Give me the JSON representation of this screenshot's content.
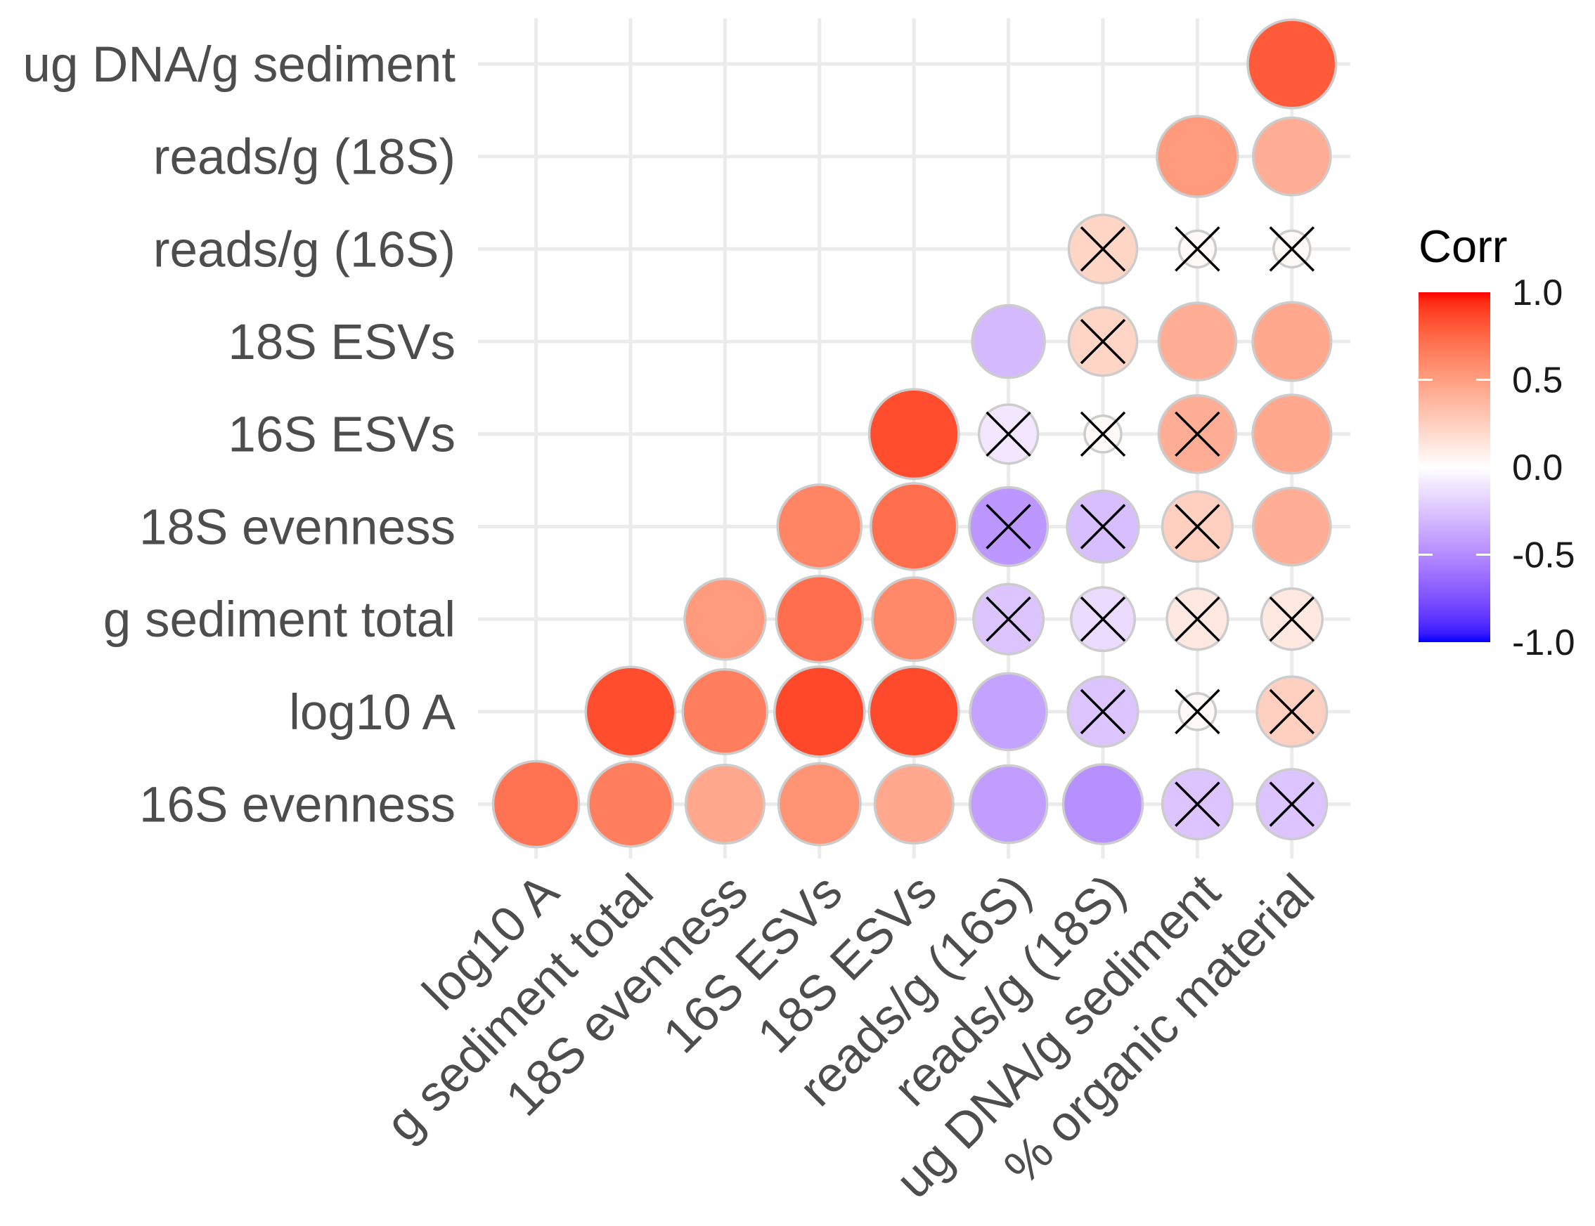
{
  "chart_data": {
    "type": "heatmap",
    "x_categories": [
      "log10 A",
      "g sediment total",
      "18S evenness",
      "16S ESVs",
      "18S ESVs",
      "reads/g (16S)",
      "reads/g (18S)",
      "ug DNA/g sediment",
      "% organic material"
    ],
    "y_categories": [
      "16S evenness",
      "log10 A",
      "g sediment total",
      "18S evenness",
      "16S ESVs",
      "18S ESVs",
      "reads/g (16S)",
      "reads/g (18S)",
      "ug DNA/g sediment"
    ],
    "matrix": [
      {
        "row": "16S evenness",
        "values": [
          0.7,
          0.65,
          0.45,
          0.55,
          0.45,
          -0.42,
          -0.48,
          -0.25,
          -0.25
        ],
        "insignificant": [
          false,
          false,
          false,
          false,
          false,
          false,
          false,
          true,
          true
        ]
      },
      {
        "row": "log10 A",
        "values": [
          null,
          0.85,
          0.65,
          0.87,
          0.86,
          -0.4,
          -0.25,
          0.03,
          0.25
        ],
        "insignificant": [
          false,
          false,
          false,
          false,
          false,
          false,
          true,
          true,
          true
        ]
      },
      {
        "row": "g sediment total",
        "values": [
          null,
          null,
          0.52,
          0.72,
          0.6,
          -0.25,
          -0.15,
          0.12,
          0.12
        ],
        "insignificant": [
          false,
          false,
          false,
          false,
          false,
          true,
          true,
          true,
          true
        ]
      },
      {
        "row": "18S evenness",
        "values": [
          null,
          null,
          null,
          0.62,
          0.72,
          -0.45,
          -0.28,
          0.25,
          0.42
        ],
        "insignificant": [
          false,
          false,
          false,
          false,
          false,
          true,
          true,
          true,
          false
        ]
      },
      {
        "row": "16S ESVs",
        "values": [
          null,
          null,
          null,
          null,
          0.85,
          -0.1,
          0.03,
          0.42,
          0.45
        ],
        "insignificant": [
          false,
          false,
          false,
          false,
          false,
          true,
          true,
          true,
          false
        ]
      },
      {
        "row": "18S ESVs",
        "values": [
          null,
          null,
          null,
          null,
          null,
          -0.3,
          0.22,
          0.42,
          0.45
        ],
        "insignificant": [
          false,
          false,
          false,
          false,
          false,
          false,
          true,
          false,
          false
        ]
      },
      {
        "row": "reads/g (16S)",
        "values": [
          null,
          null,
          null,
          null,
          null,
          null,
          0.22,
          0.03,
          0.03
        ],
        "insignificant": [
          false,
          false,
          false,
          false,
          false,
          false,
          true,
          true,
          true
        ]
      },
      {
        "row": "reads/g (18S)",
        "values": [
          null,
          null,
          null,
          null,
          null,
          null,
          null,
          0.52,
          0.42
        ],
        "insignificant": [
          false,
          false,
          false,
          false,
          false,
          false,
          false,
          false,
          false
        ]
      },
      {
        "row": "ug DNA/g sediment",
        "values": [
          null,
          null,
          null,
          null,
          null,
          null,
          null,
          null,
          0.8
        ],
        "insignificant": [
          false,
          false,
          false,
          false,
          false,
          false,
          false,
          false,
          false
        ]
      }
    ],
    "legend": {
      "title": "Corr",
      "ticks": [
        1.0,
        0.5,
        0.0,
        -0.5,
        -1.0
      ],
      "tick_labels": [
        "1.0",
        "0.5",
        "0.0",
        "-0.5",
        "-1.0"
      ],
      "limits": [
        -1,
        1
      ]
    },
    "grid": true,
    "colors": {
      "low": "#0000FF",
      "mid": "#FFFFFF",
      "high": "#FF0000",
      "outline": "#CCCCCC",
      "grid": "#EBEBEB",
      "cross": "#000000",
      "colorbar_tick": "#FFFFFF"
    }
  }
}
